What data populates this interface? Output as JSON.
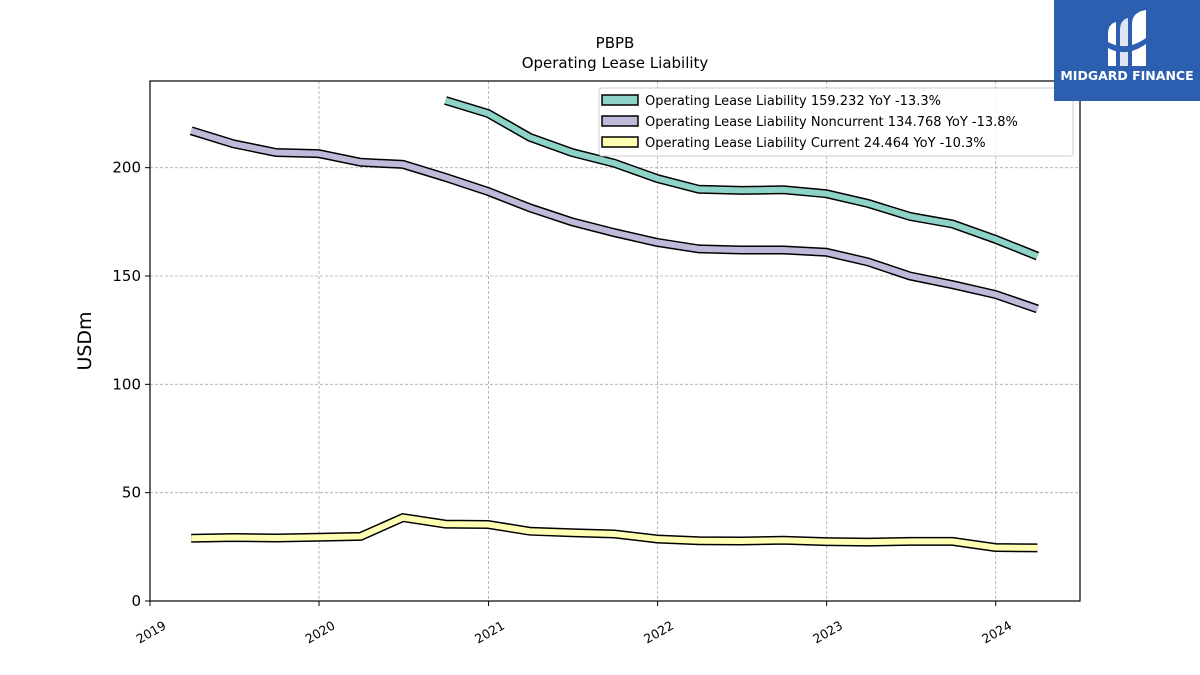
{
  "chart_data": {
    "type": "line",
    "title": "PBPB",
    "subtitle": "Operating Lease Liability",
    "ylabel": "USDm",
    "xlabel": "",
    "ylim": [
      0,
      240
    ],
    "xlim": [
      "2019-01-01",
      "2024-07-01"
    ],
    "yticks": [
      0,
      50,
      100,
      150,
      200
    ],
    "xticks": [
      "2019",
      "2020",
      "2021",
      "2022",
      "2023",
      "2024"
    ],
    "grid": true,
    "legend_position": "top-right",
    "x": [
      "2019-03-31",
      "2019-06-30",
      "2019-09-30",
      "2019-12-31",
      "2020-03-31",
      "2020-06-30",
      "2020-09-30",
      "2020-12-31",
      "2021-03-31",
      "2021-06-30",
      "2021-09-30",
      "2021-12-31",
      "2022-03-31",
      "2022-06-30",
      "2022-09-30",
      "2022-12-31",
      "2023-03-31",
      "2023-06-30",
      "2023-09-30",
      "2023-12-31",
      "2024-03-31"
    ],
    "series": [
      {
        "name": "Operating Lease Liability",
        "legend_label": "Operating Lease Liability  159.232 YoY -13.3%",
        "color": "#8dd3c7",
        "values": [
          null,
          null,
          null,
          null,
          null,
          null,
          231,
          225,
          214,
          207,
          202,
          195,
          190,
          189.5,
          189.8,
          188,
          183.5,
          177.5,
          174,
          167,
          159.2
        ]
      },
      {
        "name": "Operating Lease Liability Noncurrent",
        "legend_label": "Operating Lease Liability Noncurrent  134.768 YoY -13.8%",
        "color": "#bebada",
        "values": [
          217,
          211,
          207,
          206.5,
          202.5,
          201.5,
          195.5,
          189,
          181.5,
          175,
          170,
          165.5,
          162.5,
          162,
          162,
          161,
          156.5,
          150,
          146,
          141.5,
          134.8
        ]
      },
      {
        "name": "Operating Lease Liability Current",
        "legend_label": "Operating Lease Liability Current  24.464 YoY -10.3%",
        "color": "#ffffb3",
        "values": [
          29,
          29.3,
          29.1,
          29.4,
          29.8,
          38.5,
          35.5,
          35.3,
          32.2,
          31.5,
          30.9,
          28.6,
          27.8,
          27.7,
          28,
          27.4,
          27.2,
          27.5,
          27.5,
          24.7,
          24.5
        ]
      }
    ]
  },
  "logo": {
    "text": "MIDGARD FINANCE",
    "bg_color": "#2c5fb0",
    "icon": "midgard-logo-icon"
  }
}
